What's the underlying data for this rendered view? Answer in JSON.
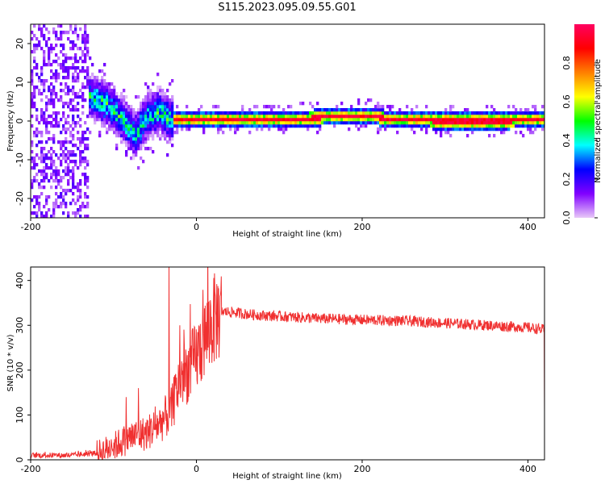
{
  "title": "S115.2023.095.09.55.G01",
  "chart_data": [
    {
      "type": "heatmap",
      "xlabel": "Height of straight line (km)",
      "ylabel": "Frequency (Hz)",
      "xlim": [
        -200,
        420
      ],
      "ylim": [
        -25,
        25
      ],
      "x_ticks": [
        -200,
        0,
        200,
        400
      ],
      "y_ticks": [
        20,
        10,
        0,
        -10,
        -20
      ],
      "colorbar": {
        "label": "Normalized spectral amplitude",
        "range": [
          0,
          1
        ],
        "ticks": [
          "0.0",
          "0.2",
          "0.4",
          "0.6",
          "0.8"
        ],
        "colors": [
          "#e8c8f8",
          "#8000ff",
          "#0000ff",
          "#00ffff",
          "#00ff00",
          "#ffff00",
          "#ff8000",
          "#ff0000",
          "#ff0060"
        ]
      },
      "ridge": {
        "x": [
          -130,
          -110,
          -90,
          -75,
          -60,
          -45,
          -35,
          -25,
          0,
          50,
          100,
          140,
          160,
          180,
          210,
          230,
          260,
          300,
          350,
          420
        ],
        "y": [
          6,
          4,
          0,
          -4,
          1,
          2,
          0,
          0,
          0,
          0,
          0,
          0.3,
          0.8,
          1,
          1,
          0,
          0,
          -0.5,
          -0.5,
          0
        ]
      }
    },
    {
      "type": "line",
      "xlabel": "Height of straight line (km)",
      "ylabel": "SNR (10 * v/v)",
      "xlim": [
        -200,
        420
      ],
      "ylim": [
        0,
        430
      ],
      "x_ticks": [
        -200,
        0,
        200,
        400
      ],
      "y_ticks": [
        0,
        100,
        200,
        300,
        400
      ],
      "color": "#f03030",
      "series": [
        {
          "x": [
            -200,
            -150,
            -120,
            -100,
            -80,
            -60,
            -45,
            -30,
            -20,
            -10,
            0,
            10,
            20,
            30,
            40,
            60,
            80,
            100,
            150,
            200,
            250,
            300,
            350,
            400,
            420
          ],
          "y": [
            10,
            10,
            15,
            30,
            50,
            60,
            80,
            110,
            180,
            200,
            230,
            270,
            310,
            330,
            330,
            325,
            322,
            320,
            315,
            312,
            310,
            305,
            300,
            295,
            290
          ]
        }
      ],
      "spikes": [
        {
          "x": -33,
          "y": 430
        },
        {
          "x": -20,
          "y": 300
        },
        {
          "x": -85,
          "y": 140
        },
        {
          "x": -70,
          "y": 160
        }
      ]
    }
  ]
}
